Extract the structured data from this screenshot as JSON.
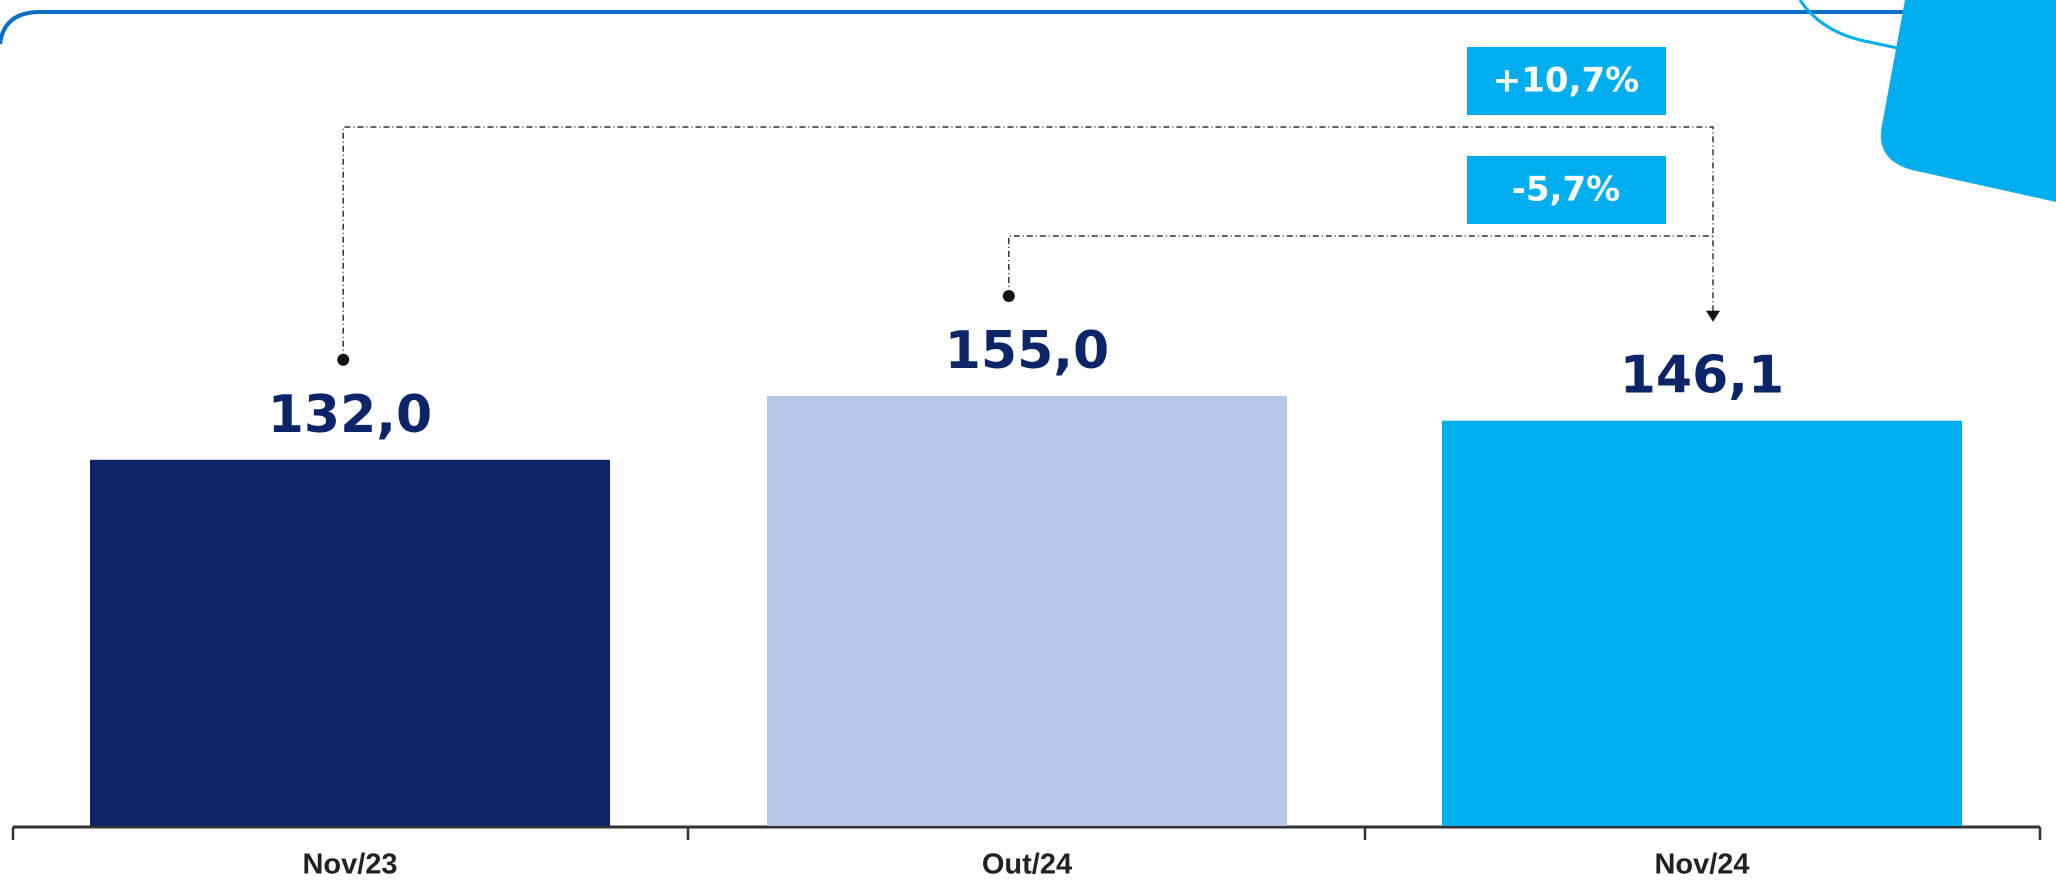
{
  "chart_data": {
    "type": "bar",
    "categories": [
      "Nov/23",
      "Out/24",
      "Nov/24"
    ],
    "values": [
      132.0,
      155.0,
      146.1
    ],
    "value_labels": [
      "132,0",
      "155,0",
      "146,1"
    ],
    "colors": [
      "#0e2469",
      "#b4c7e7",
      "#00aeef"
    ],
    "annotations": [
      "+10,7%",
      "-5,7%"
    ]
  }
}
